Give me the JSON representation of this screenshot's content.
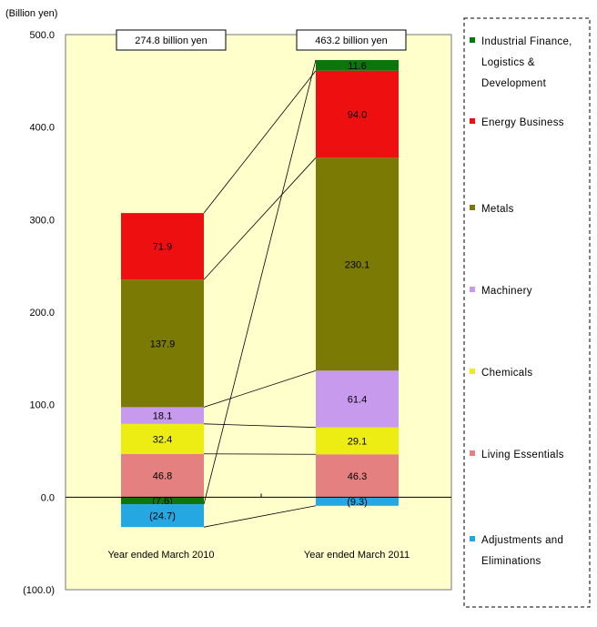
{
  "chart_data": {
    "type": "bar",
    "stacked": true,
    "unit_label": "(Billion yen)",
    "categories": [
      "Year ended March 2010",
      "Year ended March 2011"
    ],
    "totals": [
      "274.8 billion yen",
      "463.2 billion yen"
    ],
    "ylim": [
      -100,
      500
    ],
    "yticks": [
      -100,
      0,
      100,
      200,
      300,
      400,
      500
    ],
    "ytick_labels": [
      "(100.0)",
      "0.0",
      "100.0",
      "200.0",
      "300.0",
      "400.0",
      "500.0"
    ],
    "series": [
      {
        "name": "Living Essentials",
        "color": "#e58080",
        "values": [
          46.8,
          46.3
        ],
        "labels": [
          "46.8",
          "46.3"
        ]
      },
      {
        "name": "Chemicals",
        "color": "#eded14",
        "values": [
          32.4,
          29.1
        ],
        "labels": [
          "32.4",
          "29.1"
        ]
      },
      {
        "name": "Machinery",
        "color": "#c89aee",
        "values": [
          18.1,
          61.4
        ],
        "labels": [
          "18.1",
          "61.4"
        ]
      },
      {
        "name": "Metals",
        "color": "#7b7a05",
        "values": [
          137.9,
          230.1
        ],
        "labels": [
          "137.9",
          "230.1"
        ]
      },
      {
        "name": "Energy Business",
        "color": "#ee1010",
        "values": [
          71.9,
          94.0
        ],
        "labels": [
          "71.9",
          "94.0"
        ]
      },
      {
        "name": "Industrial Finance, Logistics & Development",
        "color": "#0c760c",
        "values": [
          -7.6,
          11.6
        ],
        "labels": [
          "(7.6)",
          "11.6"
        ]
      },
      {
        "name": "Adjustments and Eliminations",
        "color": "#25a8e2",
        "values": [
          -24.7,
          -9.3
        ],
        "labels": [
          "(24.7)",
          "(9.3)"
        ]
      }
    ],
    "legend": {
      "placement": "right",
      "items": [
        {
          "lines": [
            "Industrial Finance,",
            "Logistics &",
            "Development"
          ],
          "color": "#0c760c"
        },
        {
          "lines": [
            "Energy Business"
          ],
          "color": "#ee1010"
        },
        {
          "lines": [
            "Metals"
          ],
          "color": "#7b7a05"
        },
        {
          "lines": [
            "Machinery"
          ],
          "color": "#c89aee"
        },
        {
          "lines": [
            "Chemicals"
          ],
          "color": "#eded14"
        },
        {
          "lines": [
            "Living Essentials"
          ],
          "color": "#e58080"
        },
        {
          "lines": [
            "Adjustments and",
            "Eliminations"
          ],
          "color": "#25a8e2"
        }
      ]
    },
    "colors": {
      "plot_background": "#ffffcc"
    },
    "grid": false
  }
}
